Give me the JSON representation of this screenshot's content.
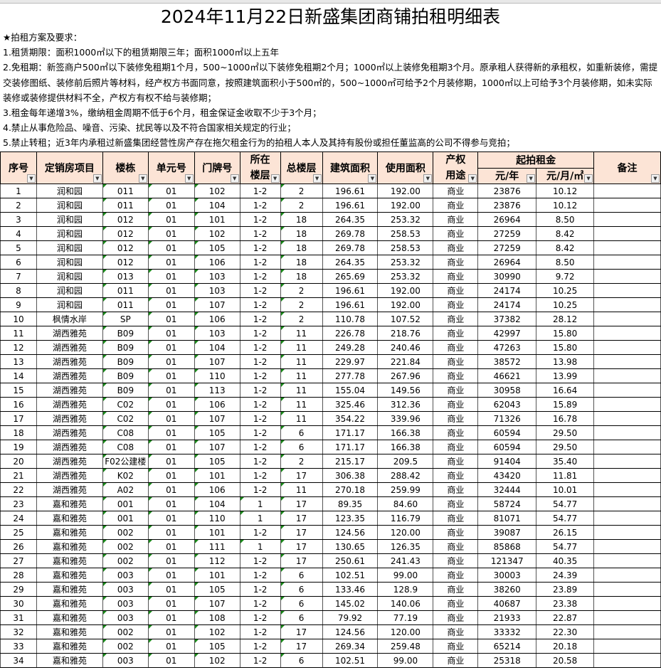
{
  "title": "2024年11月22日新盛集团商铺拍租明细表",
  "notes": [
    "★拍租方案及要求：",
    "1.租赁期限：面积1000㎡以下的租赁期限三年；面积1000㎡以上五年",
    "2.免租期：新签商户500㎡以下装修免租期1个月，500~1000㎡以下装修免租期2个月；1000㎡以上装修免租期3个月。原承租人获得新的承租权，如重新装修，需提交装修图纸、装修前后照片等材料，经产权方书面同意，按照建筑面积小于500㎡的，500~1000㎡可给予2个月装修期，1000㎡以上可给予3个月装修期，如未实际装修或装修提供材料不全，产权方有权不给与装修期；",
    "3.租金每年递增3%，缴纳租金周期不低于6个月，租金保证金收取不少于3个月；",
    "4.禁止从事危险品、噪音、污染、扰民等以及不符合国家相关规定的行业；",
    "5.禁止转租；近3年内承租过新盛集团经营性房产存在拖欠租金行为的拍租人本人及其持有股份或担任董监高的公司不得参与竞拍；"
  ],
  "headers": {
    "seq": "序号",
    "project": "定销房项目",
    "building": "楼栋",
    "unit": "单元号",
    "door": "门牌号",
    "floor": "所在楼层",
    "total_floors": "总楼层",
    "build_area": "建筑面积",
    "use_area": "使用面积",
    "usage": "产权用途",
    "rent_group": "起拍租金",
    "rent_year": "元/年",
    "rent_month": "元/月/㎡",
    "remark": "备注"
  },
  "colors": {
    "header_bg": "#fce4d6",
    "marker": "#1a8a1a"
  },
  "rows": [
    [
      "1",
      "润和园",
      "011",
      "01",
      "102",
      "1-2",
      "2",
      "196.61",
      "192.00",
      "商业",
      "23876",
      "10.12"
    ],
    [
      "2",
      "润和园",
      "011",
      "01",
      "104",
      "1-2",
      "2",
      "196.61",
      "192.00",
      "商业",
      "23876",
      "10.12"
    ],
    [
      "3",
      "润和园",
      "012",
      "01",
      "101",
      "1-2",
      "18",
      "264.35",
      "253.32",
      "商业",
      "26964",
      "8.50"
    ],
    [
      "4",
      "润和园",
      "012",
      "01",
      "102",
      "1-2",
      "18",
      "269.78",
      "258.53",
      "商业",
      "27259",
      "8.42"
    ],
    [
      "5",
      "润和园",
      "012",
      "01",
      "105",
      "1-2",
      "18",
      "269.78",
      "258.53",
      "商业",
      "27259",
      "8.42"
    ],
    [
      "6",
      "润和园",
      "012",
      "01",
      "106",
      "1-2",
      "18",
      "264.35",
      "253.32",
      "商业",
      "26964",
      "8.50"
    ],
    [
      "7",
      "润和园",
      "013",
      "01",
      "103",
      "1-2",
      "18",
      "265.69",
      "253.32",
      "商业",
      "30990",
      "9.72"
    ],
    [
      "8",
      "润和园",
      "011",
      "01",
      "103",
      "1-2",
      "2",
      "196.61",
      "192.00",
      "商业",
      "24174",
      "10.25"
    ],
    [
      "9",
      "润和园",
      "011",
      "01",
      "107",
      "1-2",
      "2",
      "196.61",
      "192.00",
      "商业",
      "24174",
      "10.25"
    ],
    [
      "10",
      "枫情水岸",
      "SP",
      "01",
      "106",
      "1-2",
      "2",
      "110.78",
      "107.52",
      "商业",
      "37382",
      "28.12"
    ],
    [
      "11",
      "湖西雅苑",
      "B09",
      "01",
      "103",
      "1-2",
      "11",
      "226.78",
      "218.76",
      "商业",
      "42997",
      "15.80"
    ],
    [
      "12",
      "湖西雅苑",
      "B09",
      "01",
      "104",
      "1-2",
      "11",
      "249.28",
      "240.46",
      "商业",
      "47263",
      "15.80"
    ],
    [
      "13",
      "湖西雅苑",
      "B09",
      "01",
      "107",
      "1-2",
      "11",
      "229.97",
      "221.84",
      "商业",
      "38572",
      "13.98"
    ],
    [
      "14",
      "湖西雅苑",
      "B09",
      "01",
      "110",
      "1-2",
      "11",
      "277.78",
      "267.96",
      "商业",
      "46621",
      "13.99"
    ],
    [
      "15",
      "湖西雅苑",
      "B09",
      "01",
      "113",
      "1-2",
      "11",
      "155.04",
      "149.56",
      "商业",
      "30958",
      "16.64"
    ],
    [
      "16",
      "湖西雅苑",
      "C02",
      "01",
      "106",
      "1-2",
      "11",
      "325.46",
      "312.36",
      "商业",
      "62043",
      "15.89"
    ],
    [
      "17",
      "湖西雅苑",
      "C02",
      "01",
      "107",
      "1-2",
      "11",
      "354.22",
      "339.96",
      "商业",
      "71326",
      "16.78"
    ],
    [
      "18",
      "湖西雅苑",
      "C08",
      "01",
      "105",
      "1-2",
      "6",
      "171.17",
      "166.38",
      "商业",
      "60594",
      "29.50"
    ],
    [
      "19",
      "湖西雅苑",
      "C08",
      "01",
      "107",
      "1-2",
      "6",
      "171.17",
      "166.38",
      "商业",
      "60594",
      "29.50"
    ],
    [
      "20",
      "湖西雅苑",
      "F02公建楼",
      "01",
      "105",
      "1-2",
      "2",
      "215.17",
      "209.5",
      "商业",
      "91404",
      "35.40"
    ],
    [
      "21",
      "湖西雅苑",
      "K02",
      "01",
      "101",
      "1-2",
      "17",
      "306.38",
      "288.42",
      "商业",
      "43420",
      "11.81"
    ],
    [
      "22",
      "湖西雅苑",
      "A02",
      "01",
      "106",
      "1-2",
      "11",
      "270.18",
      "259.99",
      "商业",
      "32444",
      "10.01"
    ],
    [
      "23",
      "嘉和雅苑",
      "001",
      "01",
      "104",
      "1",
      "17",
      "89.35",
      "84.60",
      "商业",
      "58724",
      "54.77"
    ],
    [
      "24",
      "嘉和雅苑",
      "001",
      "01",
      "110",
      "1",
      "17",
      "123.35",
      "116.79",
      "商业",
      "81071",
      "54.77"
    ],
    [
      "25",
      "嘉和雅苑",
      "002",
      "01",
      "101",
      "1-2",
      "17",
      "124.56",
      "120.00",
      "商业",
      "39087",
      "26.15"
    ],
    [
      "26",
      "嘉和雅苑",
      "002",
      "01",
      "111",
      "1",
      "17",
      "130.65",
      "126.35",
      "商业",
      "85868",
      "54.77"
    ],
    [
      "27",
      "嘉和雅苑",
      "002",
      "01",
      "112",
      "1-2",
      "17",
      "250.61",
      "241.43",
      "商业",
      "121347",
      "40.35"
    ],
    [
      "28",
      "嘉和雅苑",
      "003",
      "01",
      "101",
      "1-2",
      "6",
      "102.51",
      "99.00",
      "商业",
      "30003",
      "24.39"
    ],
    [
      "29",
      "嘉和雅苑",
      "003",
      "01",
      "105",
      "1-2",
      "6",
      "133.46",
      "128.9",
      "商业",
      "38260",
      "23.89"
    ],
    [
      "30",
      "嘉和雅苑",
      "003",
      "01",
      "107",
      "1-2",
      "6",
      "145.02",
      "140.06",
      "商业",
      "40687",
      "23.38"
    ],
    [
      "31",
      "嘉和雅苑",
      "003",
      "01",
      "108",
      "1-2",
      "6",
      "79.92",
      "77.19",
      "商业",
      "21933",
      "22.87"
    ],
    [
      "32",
      "嘉和雅苑",
      "002",
      "01",
      "102",
      "1-2",
      "17",
      "124.56",
      "120.00",
      "商业",
      "33332",
      "22.30"
    ],
    [
      "33",
      "嘉和雅苑",
      "002",
      "01",
      "105",
      "1-2",
      "17",
      "269.34",
      "259.48",
      "商业",
      "65214",
      "20.18"
    ],
    [
      "34",
      "嘉和雅苑",
      "003",
      "01",
      "102",
      "1-2",
      "6",
      "102.51",
      "99.00",
      "商业",
      "25318",
      "20.58"
    ]
  ]
}
